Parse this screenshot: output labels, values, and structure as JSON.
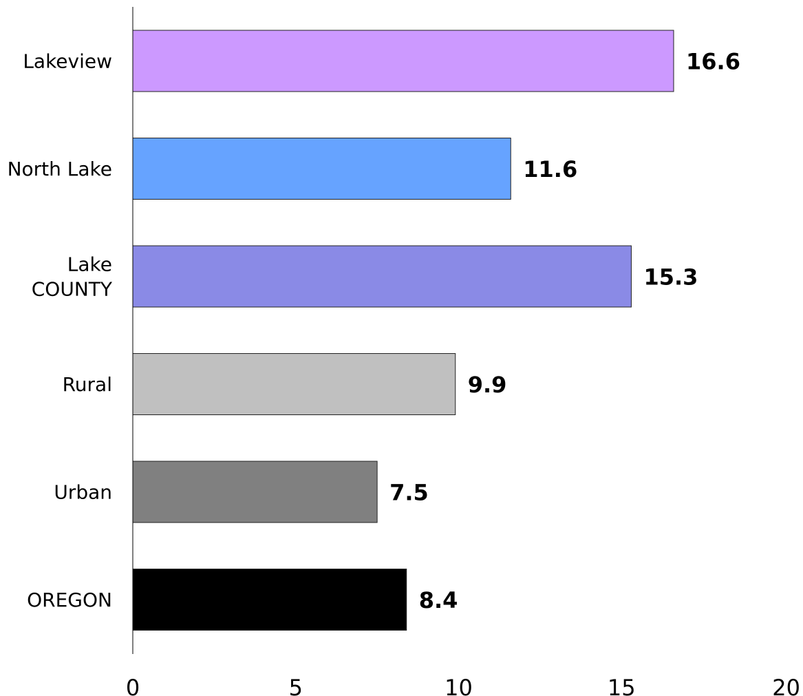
{
  "chart_data": {
    "type": "bar",
    "orientation": "horizontal",
    "title": "",
    "xlabel": "",
    "ylabel": "",
    "xlim": [
      0,
      20
    ],
    "xticks": [
      0,
      5,
      10,
      15,
      20
    ],
    "grid": false,
    "legend": "none",
    "categories": [
      {
        "label_lines": [
          "Lakeview"
        ],
        "label": "Lakeview",
        "value": 16.6,
        "value_label": "16.6",
        "color": "#CC99FF"
      },
      {
        "label_lines": [
          "North Lake"
        ],
        "label": "North Lake",
        "value": 11.6,
        "value_label": "11.6",
        "color": "#66A3FF"
      },
      {
        "label_lines": [
          "Lake",
          "COUNTY"
        ],
        "label": "Lake COUNTY",
        "value": 15.3,
        "value_label": "15.3",
        "color": "#8A8AE6"
      },
      {
        "label_lines": [
          "Rural"
        ],
        "label": "Rural",
        "value": 9.9,
        "value_label": "9.9",
        "color": "#C0C0C0"
      },
      {
        "label_lines": [
          "Urban"
        ],
        "label": "Urban",
        "value": 7.5,
        "value_label": "7.5",
        "color": "#808080"
      },
      {
        "label_lines": [
          "OREGON"
        ],
        "label": "OREGON",
        "value": 8.4,
        "value_label": "8.4",
        "color": "#000000"
      }
    ]
  }
}
